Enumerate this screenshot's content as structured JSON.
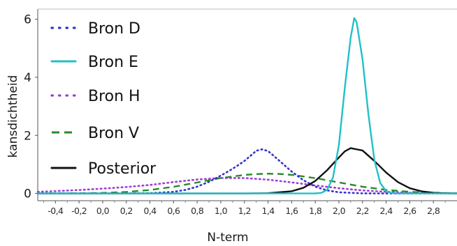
{
  "chart_data": {
    "type": "line",
    "xlabel": "N-term",
    "ylabel": "kansdichtheid",
    "xlim": [
      -0.55,
      3.0
    ],
    "ylim": [
      -0.25,
      6.35
    ],
    "xticks": [
      -0.4,
      -0.2,
      0.0,
      0.2,
      0.4,
      0.6,
      0.8,
      1.0,
      1.2,
      1.4,
      1.6,
      1.8,
      2.0,
      2.2,
      2.4,
      2.6,
      2.8
    ],
    "xtick_labels": [
      "-0,4",
      "-0,2",
      "0,0",
      "0,2",
      "0,4",
      "0,6",
      "0,8",
      "1,0",
      "1,2",
      "1,4",
      "1,6",
      "1,8",
      "2,0",
      "2,2",
      "2,4",
      "2,6",
      "2,8"
    ],
    "yticks": [
      0,
      2,
      4,
      6
    ],
    "ytick_labels": [
      "0",
      "2",
      "4",
      "6"
    ],
    "legend_position": "top-left",
    "grid": false,
    "series": [
      {
        "name": "Bron D",
        "color": "#3333cc",
        "style": "dotted",
        "x": [
          -0.55,
          -0.2,
          0.0,
          0.2,
          0.4,
          0.6,
          0.7,
          0.8,
          0.9,
          1.0,
          1.05,
          1.1,
          1.15,
          1.2,
          1.25,
          1.3,
          1.35,
          1.4,
          1.45,
          1.5,
          1.6,
          1.7,
          1.8,
          1.9,
          2.0,
          2.2,
          2.5,
          3.0
        ],
        "y": [
          0.0,
          0.0,
          0.0,
          0.001,
          0.008,
          0.056,
          0.121,
          0.234,
          0.401,
          0.615,
          0.73,
          0.85,
          0.98,
          1.12,
          1.29,
          1.47,
          1.52,
          1.46,
          1.29,
          1.11,
          0.755,
          0.453,
          0.234,
          0.106,
          0.04,
          0.003,
          0.0,
          0.0
        ]
      },
      {
        "name": "Bron E",
        "color": "#22c0c8",
        "style": "solid",
        "x": [
          -0.55,
          1.7,
          1.8,
          1.85,
          1.9,
          1.95,
          2.0,
          2.05,
          2.1,
          2.13,
          2.15,
          2.2,
          2.25,
          2.3,
          2.35,
          2.4,
          2.45,
          2.5,
          2.6,
          3.0
        ],
        "y": [
          0.0,
          0.0,
          0.002,
          0.018,
          0.12,
          0.55,
          1.67,
          3.64,
          5.38,
          6.04,
          5.9,
          4.62,
          2.72,
          1.16,
          0.36,
          0.08,
          0.013,
          0.002,
          0.0,
          0.0
        ]
      },
      {
        "name": "Bron H",
        "color": "#a03ad8",
        "style": "dotted",
        "x": [
          -0.55,
          -0.4,
          -0.2,
          0.0,
          0.2,
          0.4,
          0.6,
          0.8,
          1.0,
          1.2,
          1.4,
          1.6,
          1.8,
          2.0,
          2.2,
          2.4,
          2.6,
          2.8,
          3.0
        ],
        "y": [
          0.055,
          0.08,
          0.118,
          0.166,
          0.222,
          0.292,
          0.391,
          0.48,
          0.532,
          0.53,
          0.474,
          0.381,
          0.276,
          0.18,
          0.105,
          0.055,
          0.026,
          0.011,
          0.004
        ]
      },
      {
        "name": "Bron V",
        "color": "#2a8a2a",
        "style": "dashed",
        "x": [
          -0.55,
          -0.2,
          0.0,
          0.2,
          0.4,
          0.6,
          0.8,
          1.0,
          1.2,
          1.3,
          1.4,
          1.5,
          1.6,
          1.8,
          2.0,
          2.2,
          2.4,
          2.6,
          2.8,
          3.0
        ],
        "y": [
          0.001,
          0.006,
          0.02,
          0.052,
          0.119,
          0.229,
          0.377,
          0.53,
          0.637,
          0.667,
          0.68,
          0.672,
          0.64,
          0.528,
          0.379,
          0.232,
          0.122,
          0.055,
          0.021,
          0.007
        ]
      },
      {
        "name": "Posterior",
        "color": "#111111",
        "style": "solid",
        "x": [
          -0.55,
          1.2,
          1.4,
          1.6,
          1.7,
          1.8,
          1.9,
          2.0,
          2.05,
          2.1,
          2.2,
          2.3,
          2.4,
          2.5,
          2.6,
          2.7,
          2.8,
          2.9,
          3.0
        ],
        "y": [
          0.0,
          0.0,
          0.008,
          0.075,
          0.195,
          0.43,
          0.8,
          1.24,
          1.45,
          1.56,
          1.48,
          1.12,
          0.72,
          0.39,
          0.18,
          0.072,
          0.024,
          0.007,
          0.001
        ]
      }
    ]
  }
}
